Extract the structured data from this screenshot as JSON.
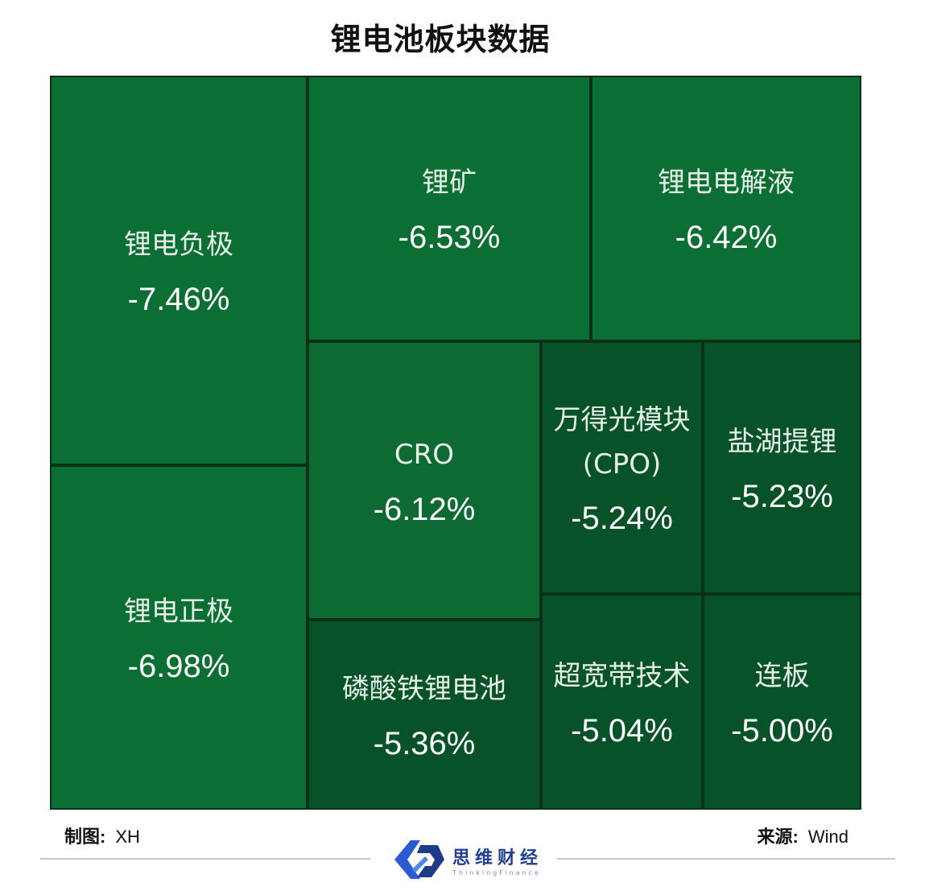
{
  "title": "锂电池板块数据",
  "chart_data": {
    "type": "treemap",
    "title": "锂电池板块数据",
    "items": [
      {
        "name": "锂电负极",
        "value": -7.46,
        "label": "-7.46%"
      },
      {
        "name": "锂电正极",
        "value": -6.98,
        "label": "-6.98%"
      },
      {
        "name": "锂矿",
        "value": -6.53,
        "label": "-6.53%"
      },
      {
        "name": "锂电电解液",
        "value": -6.42,
        "label": "-6.42%"
      },
      {
        "name": "CRO",
        "value": -6.12,
        "label": "-6.12%"
      },
      {
        "name": "磷酸铁锂电池",
        "value": -5.36,
        "label": "-5.36%"
      },
      {
        "name": "万得光模块\n(CPO)",
        "value": -5.24,
        "label": "-5.24%"
      },
      {
        "name": "盐湖提锂",
        "value": -5.23,
        "label": "-5.23%"
      },
      {
        "name": "超宽带技术",
        "value": -5.04,
        "label": "-5.04%"
      },
      {
        "name": "连板",
        "value": -5.0,
        "label": "-5.00%"
      }
    ],
    "colors": {
      "strong": "#0b6f34",
      "mid": "#0e6a33",
      "weak": "#075228"
    }
  },
  "footer": {
    "left_label": "制图:",
    "left_value": "XH",
    "right_label": "来源:",
    "right_value": "Wind"
  },
  "logo": {
    "cn": "思维财经",
    "en": "ThinkingFinance",
    "icon": "thinking-finance-logo-icon"
  }
}
